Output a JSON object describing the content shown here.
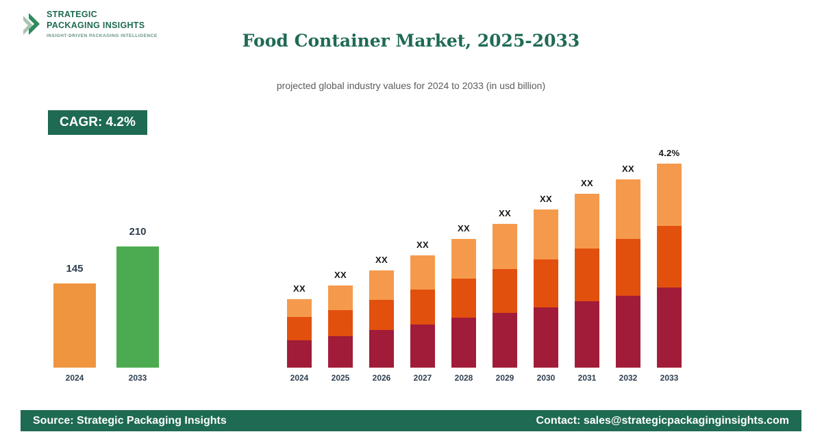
{
  "brand": {
    "name_line1": "STRATEGIC",
    "name_line2": "PACKAGING INSIGHTS",
    "tagline": "INSIGHT-DRIVEN PACKAGING INTELLIGENCE"
  },
  "title": "Food Container Market, 2025-2033",
  "subtitle": "projected global industry values for 2024 to 2033 (in usd billion)",
  "cagr_badge": "CAGR: 4.2%",
  "footer": {
    "source": "Source: Strategic Packaging Insights",
    "contact": "Contact: sales@strategicpackaginginsights.com"
  },
  "colors": {
    "brand_teal": "#1e6a52",
    "summary_2024_bar": "#f0953f",
    "summary_2033_bar": "#4cab50",
    "stack_bottom": "#a11c38",
    "stack_middle": "#e2500e",
    "stack_top": "#f59a4d"
  },
  "chart_data": [
    {
      "type": "bar",
      "name": "market-size-summary",
      "categories": [
        "2024",
        "2033"
      ],
      "values": [
        145,
        210
      ],
      "colors": [
        "#f0953f",
        "#4cab50"
      ],
      "ylim": [
        0,
        250
      ],
      "grid": false,
      "legend": "none"
    },
    {
      "type": "bar",
      "name": "stacked-projection",
      "stacked": true,
      "categories": [
        "2024",
        "2025",
        "2026",
        "2027",
        "2028",
        "2029",
        "2030",
        "2031",
        "2032",
        "2033"
      ],
      "series": [
        {
          "name": "bottom",
          "color": "#a11c38",
          "values": [
            40,
            46,
            55,
            63,
            73,
            80,
            88,
            97,
            105,
            117
          ]
        },
        {
          "name": "middle",
          "color": "#e2500e",
          "values": [
            34,
            38,
            44,
            51,
            57,
            64,
            70,
            77,
            83,
            90
          ]
        },
        {
          "name": "top",
          "color": "#f59a4d",
          "values": [
            26,
            36,
            43,
            50,
            58,
            66,
            73,
            80,
            87,
            91
          ]
        }
      ],
      "bar_top_labels": [
        "XX",
        "XX",
        "XX",
        "XX",
        "XX",
        "XX",
        "XX",
        "XX",
        "XX",
        "4.2%"
      ],
      "note": "segment values are relative heights estimated from the figure; actual figures are masked as XX in the source image",
      "grid": false,
      "legend": "none"
    }
  ]
}
